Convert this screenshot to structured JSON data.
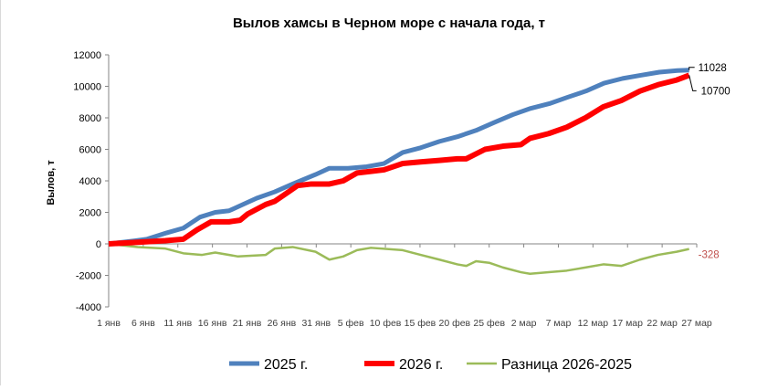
{
  "chart_data": {
    "type": "line",
    "title": "Вылов хамсы в Черном море с начала года, т",
    "ylabel": "Вылов, т",
    "xlabel": "",
    "ylim": [
      -4000,
      12000
    ],
    "yticks": [
      12000,
      10000,
      8000,
      6000,
      4000,
      2000,
      0,
      -2000,
      -4000
    ],
    "xlim_days": [
      0,
      85
    ],
    "xticks": [
      "1 янв",
      "6 янв",
      "11 янв",
      "16 янв",
      "21 янв",
      "26 янв",
      "31 янв",
      "5 фев",
      "10 фев",
      "15 фев",
      "20 фев",
      "25 фев",
      "2 мар",
      "7 мар",
      "12 мар",
      "17 мар",
      "22 мар",
      "27 мар"
    ],
    "legend_position": "bottom",
    "series": [
      {
        "name": "2025 г.",
        "color": "#4f81bd",
        "end_label": "11028",
        "x": [
          0,
          3.8,
          5.5,
          8.4,
          10.8,
          13.2,
          15.4,
          17.4,
          19.4,
          21.4,
          24,
          26.6,
          29.9,
          31.9,
          34.6,
          37.3,
          39.8,
          42.5,
          45.1,
          47.8,
          50.4,
          53.1,
          55.7,
          58.4,
          61,
          63.7,
          66.3,
          69,
          71.6,
          74.3,
          76.9,
          79.6,
          82.2,
          83.9
        ],
        "values": [
          0,
          200,
          300,
          700,
          1000,
          1700,
          2000,
          2100,
          2500,
          2900,
          3300,
          3800,
          4400,
          4800,
          4800,
          4900,
          5100,
          5800,
          6100,
          6500,
          6800,
          7200,
          7700,
          8200,
          8600,
          8900,
          9300,
          9700,
          10200,
          10500,
          10700,
          10900,
          11000,
          11028
        ]
      },
      {
        "name": "2026 г.",
        "color": "#ff0000",
        "end_label": "10700",
        "x": [
          0,
          4.2,
          8.2,
          10.8,
          12.8,
          14.8,
          17.4,
          19,
          20.1,
          22.7,
          24,
          26,
          27.3,
          29.3,
          31.9,
          33.9,
          35.9,
          37.9,
          39.8,
          42.5,
          45.1,
          47.8,
          50.4,
          51.7,
          54.4,
          57,
          59.6,
          60.9,
          63.6,
          66.2,
          68.9,
          71.5,
          74.1,
          76.8,
          79.4,
          82.1,
          83.9
        ],
        "values": [
          0,
          100,
          200,
          300,
          900,
          1400,
          1400,
          1500,
          1900,
          2500,
          2700,
          3300,
          3700,
          3800,
          3800,
          4000,
          4500,
          4600,
          4700,
          5100,
          5200,
          5300,
          5400,
          5400,
          6000,
          6200,
          6300,
          6700,
          7000,
          7400,
          8000,
          8700,
          9100,
          9700,
          10100,
          10400,
          10700
        ]
      },
      {
        "name": "Разница 2026-2025",
        "color": "#9bbb59",
        "end_label": "-328",
        "label_color": "#c0504d",
        "x": [
          0,
          4.2,
          8.2,
          10.8,
          13.5,
          15.4,
          18.7,
          22.7,
          24,
          26.6,
          29.9,
          31.9,
          33.9,
          35.9,
          37.9,
          42.5,
          45.1,
          47.8,
          50.4,
          51.7,
          53.1,
          55,
          57,
          59.6,
          60.9,
          63.6,
          66.2,
          68.9,
          71.5,
          74.1,
          76.8,
          79.4,
          82.1,
          83.9
        ],
        "values": [
          0,
          -200,
          -300,
          -600,
          -700,
          -550,
          -800,
          -700,
          -300,
          -200,
          -500,
          -1000,
          -800,
          -400,
          -250,
          -400,
          -700,
          -1000,
          -1300,
          -1400,
          -1100,
          -1200,
          -1500,
          -1800,
          -1900,
          -1800,
          -1700,
          -1500,
          -1300,
          -1400,
          -1000,
          -700,
          -500,
          -328
        ]
      }
    ]
  }
}
